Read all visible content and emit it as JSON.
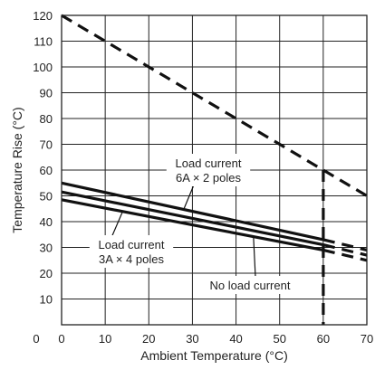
{
  "chart_data": {
    "type": "line",
    "xlabel": "Ambient Temperature (°C)",
    "ylabel": "Temperature Rise (°C)",
    "xlim": [
      0,
      70
    ],
    "ylim": [
      0,
      120
    ],
    "xticks": [
      0,
      10,
      20,
      30,
      40,
      50,
      60,
      70
    ],
    "yticks": [
      0,
      10,
      20,
      30,
      40,
      50,
      60,
      70,
      80,
      90,
      100,
      110,
      120
    ],
    "grid": "vertical and horizontal",
    "legend": "none",
    "series": [
      {
        "name": "Load current 6A × 2 poles",
        "style": "solid",
        "points": [
          [
            0,
            55
          ],
          [
            60,
            33
          ]
        ],
        "dashed_extension": [
          [
            60,
            33
          ],
          [
            70,
            29
          ]
        ]
      },
      {
        "style": "solid",
        "points": [
          [
            0,
            51.5
          ],
          [
            60,
            31
          ]
        ],
        "dashed_extension": [
          [
            60,
            31
          ],
          [
            70,
            27
          ]
        ]
      },
      {
        "name": "Load current 3A × 4 poles",
        "style": "solid",
        "points": [
          [
            0,
            48.5
          ],
          [
            60,
            29
          ]
        ],
        "dashed_extension": [
          [
            60,
            29
          ],
          [
            70,
            25
          ]
        ]
      },
      {
        "style": "dashed",
        "points": [
          [
            0,
            120
          ],
          [
            60,
            60
          ],
          [
            70,
            50
          ]
        ]
      },
      {
        "style": "dashed",
        "points": [
          [
            60,
            60
          ],
          [
            60,
            0
          ]
        ]
      }
    ],
    "annotations": [
      {
        "lines": [
          "Load current",
          "6A × 2 poles"
        ],
        "target_series": 0
      },
      {
        "lines": [
          "Load current",
          "3A × 4 poles"
        ],
        "target_series": 2
      },
      {
        "lines": [
          "No load current"
        ],
        "target_series": 2
      }
    ]
  }
}
